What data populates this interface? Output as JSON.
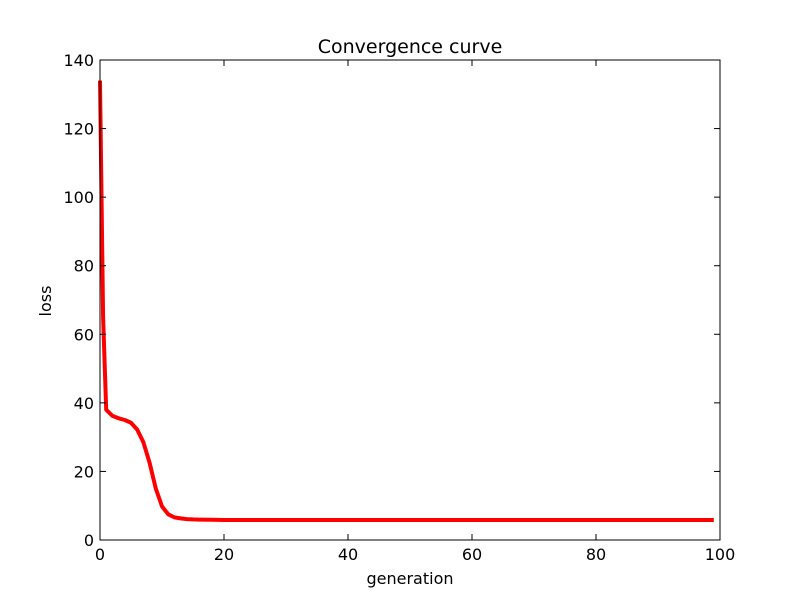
{
  "chart_data": {
    "type": "line",
    "title": "Convergence curve",
    "xlabel": "generation",
    "ylabel": "loss",
    "xlim": [
      0,
      100
    ],
    "ylim": [
      0,
      140
    ],
    "xticks": [
      0,
      20,
      40,
      60,
      80,
      100
    ],
    "xtick_labels": [
      "0",
      "20",
      "40",
      "60",
      "80",
      "100"
    ],
    "yticks": [
      0,
      20,
      40,
      60,
      80,
      100,
      120,
      140
    ],
    "ytick_labels": [
      "0",
      "20",
      "40",
      "60",
      "80",
      "100",
      "120",
      "140"
    ],
    "grid": false,
    "legend": "none",
    "series": [
      {
        "color": "#ff0000",
        "x": [
          0,
          0.5,
          1,
          2,
          3,
          4,
          5,
          6,
          7,
          8,
          9,
          10,
          11,
          12,
          13,
          14,
          15,
          16,
          18,
          20,
          25,
          30,
          40,
          50,
          60,
          70,
          80,
          90,
          99
        ],
        "y": [
          134,
          65,
          38,
          36.2,
          35.5,
          35,
          34.2,
          32.2,
          28.5,
          22.5,
          15,
          9.8,
          7.5,
          6.6,
          6.3,
          6.1,
          6.0,
          5.95,
          5.9,
          5.85,
          5.85,
          5.85,
          5.85,
          5.85,
          5.85,
          5.85,
          5.85,
          5.85,
          5.85
        ]
      }
    ]
  }
}
